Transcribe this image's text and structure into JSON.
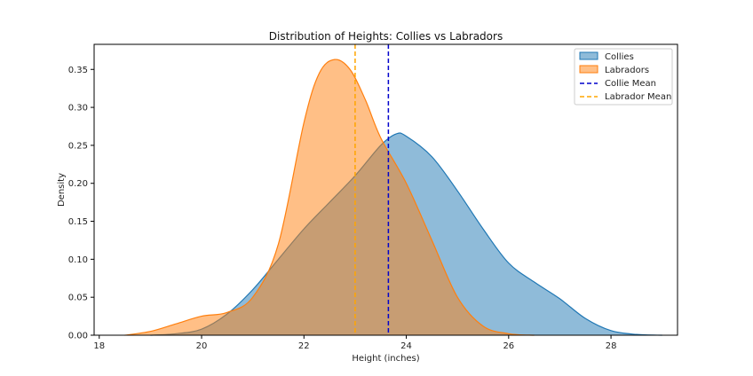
{
  "chart_data": {
    "type": "area",
    "title": "Distribution of Heights: Collies vs Labradors",
    "xlabel": "Height (inches)",
    "ylabel": "Density",
    "xlim": [
      17.9,
      29.3
    ],
    "ylim": [
      0,
      0.383
    ],
    "xticks": [
      18,
      20,
      22,
      24,
      26,
      28
    ],
    "yticks": [
      0.0,
      0.05,
      0.1,
      0.15,
      0.2,
      0.25,
      0.3,
      0.35
    ],
    "ytick_labels": [
      "0.00",
      "0.05",
      "0.10",
      "0.15",
      "0.20",
      "0.25",
      "0.30",
      "0.35"
    ],
    "grid": false,
    "legend_position": "upper right",
    "series": [
      {
        "name": "Collies",
        "color": "#1f77b4",
        "fill_opacity": 0.5,
        "x": [
          19.0,
          19.5,
          20.0,
          20.5,
          21.0,
          21.5,
          22.0,
          22.5,
          23.0,
          23.5,
          23.8,
          24.0,
          24.5,
          25.0,
          25.5,
          26.0,
          26.5,
          27.0,
          27.5,
          28.0,
          28.5,
          29.0
        ],
        "y": [
          0.0,
          0.002,
          0.008,
          0.028,
          0.06,
          0.1,
          0.14,
          0.175,
          0.21,
          0.25,
          0.265,
          0.262,
          0.235,
          0.19,
          0.14,
          0.095,
          0.07,
          0.048,
          0.022,
          0.006,
          0.001,
          0.0
        ]
      },
      {
        "name": "Labradors",
        "color": "#ff7f0e",
        "fill_opacity": 0.5,
        "x": [
          18.5,
          19.0,
          19.5,
          20.0,
          20.5,
          21.0,
          21.5,
          22.0,
          22.3,
          22.6,
          22.9,
          23.2,
          23.5,
          24.0,
          24.5,
          25.0,
          25.5,
          26.0,
          26.5
        ],
        "y": [
          0.0,
          0.005,
          0.015,
          0.025,
          0.03,
          0.05,
          0.12,
          0.28,
          0.345,
          0.363,
          0.35,
          0.31,
          0.26,
          0.2,
          0.125,
          0.05,
          0.012,
          0.002,
          0.0
        ]
      }
    ],
    "reference_lines": [
      {
        "name": "Collie Mean",
        "x": 23.65,
        "color": "#0000cc",
        "style": "dashed"
      },
      {
        "name": "Labrador Mean",
        "x": 23.0,
        "color": "#ffa500",
        "style": "dashed"
      }
    ]
  }
}
